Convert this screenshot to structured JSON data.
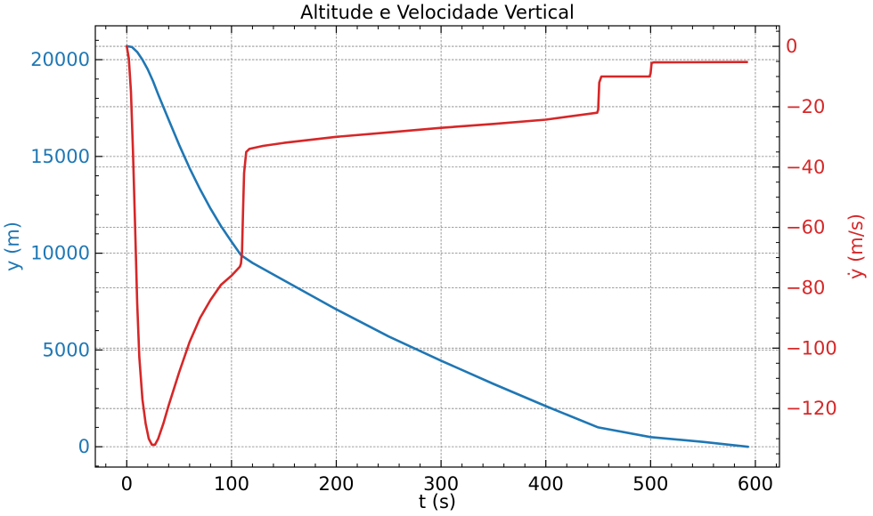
{
  "chart_data": {
    "type": "line",
    "title": "Altitude e Velocidade Vertical",
    "xlabel": "t (s)",
    "xlim": [
      -30,
      623
    ],
    "x_ticks": [
      0,
      100,
      200,
      300,
      400,
      500,
      600
    ],
    "grid": true,
    "left_axis": {
      "ylabel": "y (m)",
      "color": "#1f77b4",
      "ylim": [
        -1050,
        21750
      ],
      "ticks": [
        0,
        5000,
        10000,
        15000,
        20000
      ]
    },
    "right_axis": {
      "ylabel": "ẏ (m/s)",
      "color": "#d62728",
      "ylim": [
        -139.4,
        6.8
      ],
      "ticks": [
        0,
        -20,
        -40,
        -60,
        -80,
        -100,
        -120
      ]
    },
    "series": [
      {
        "axis": "left",
        "color": "#1f77b4",
        "points": [
          [
            0,
            20700
          ],
          [
            5,
            20650
          ],
          [
            10,
            20400
          ],
          [
            15,
            20000
          ],
          [
            20,
            19500
          ],
          [
            25,
            18900
          ],
          [
            30,
            18200
          ],
          [
            40,
            16900
          ],
          [
            50,
            15600
          ],
          [
            60,
            14400
          ],
          [
            70,
            13300
          ],
          [
            80,
            12300
          ],
          [
            90,
            11400
          ],
          [
            100,
            10600
          ],
          [
            109,
            9900
          ],
          [
            120,
            9500
          ],
          [
            150,
            8600
          ],
          [
            200,
            7100
          ],
          [
            250,
            5700
          ],
          [
            300,
            4450
          ],
          [
            350,
            3250
          ],
          [
            400,
            2100
          ],
          [
            450,
            1000
          ],
          [
            500,
            500
          ],
          [
            550,
            250
          ],
          [
            593,
            0
          ]
        ]
      },
      {
        "axis": "right",
        "color": "#d62728",
        "points": [
          [
            0,
            0
          ],
          [
            2,
            -4
          ],
          [
            4,
            -15
          ],
          [
            6,
            -35
          ],
          [
            8,
            -60
          ],
          [
            10,
            -85
          ],
          [
            12,
            -103
          ],
          [
            15,
            -117
          ],
          [
            18,
            -125
          ],
          [
            21,
            -130
          ],
          [
            24,
            -132
          ],
          [
            27,
            -132
          ],
          [
            30,
            -130
          ],
          [
            35,
            -125
          ],
          [
            40,
            -119
          ],
          [
            50,
            -108
          ],
          [
            60,
            -98
          ],
          [
            70,
            -90
          ],
          [
            80,
            -84
          ],
          [
            90,
            -79
          ],
          [
            100,
            -76
          ],
          [
            108,
            -73
          ],
          [
            109,
            -72
          ],
          [
            110,
            -68
          ],
          [
            111,
            -55
          ],
          [
            112,
            -42
          ],
          [
            114,
            -35
          ],
          [
            117,
            -34
          ],
          [
            130,
            -33
          ],
          [
            150,
            -32
          ],
          [
            200,
            -30
          ],
          [
            250,
            -28.5
          ],
          [
            300,
            -27
          ],
          [
            350,
            -25.7
          ],
          [
            400,
            -24.3
          ],
          [
            449,
            -22
          ],
          [
            450,
            -21
          ],
          [
            451,
            -12
          ],
          [
            453,
            -10
          ],
          [
            499,
            -10
          ],
          [
            500,
            -9
          ],
          [
            501,
            -5.5
          ],
          [
            503,
            -5.3
          ],
          [
            592,
            -5.2
          ]
        ]
      }
    ]
  }
}
